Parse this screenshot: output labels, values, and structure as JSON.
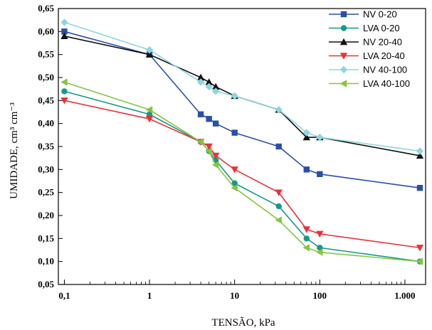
{
  "chart_data": {
    "type": "line",
    "xscale": "log",
    "xlim": [
      0.085,
      1750
    ],
    "ylim": [
      0.05,
      0.65
    ],
    "xticks": [
      {
        "value": 0.1,
        "label": "0,1"
      },
      {
        "value": 1,
        "label": "1"
      },
      {
        "value": 10,
        "label": "10"
      },
      {
        "value": 100,
        "label": "100"
      },
      {
        "value": 1000,
        "label": "1.000"
      }
    ],
    "yticks": [
      {
        "value": 0.05,
        "label": "0,05"
      },
      {
        "value": 0.1,
        "label": "0,10"
      },
      {
        "value": 0.15,
        "label": "0,15"
      },
      {
        "value": 0.2,
        "label": "0,20"
      },
      {
        "value": 0.25,
        "label": "0,25"
      },
      {
        "value": 0.3,
        "label": "0,30"
      },
      {
        "value": 0.35,
        "label": "0,35"
      },
      {
        "value": 0.4,
        "label": "0,40"
      },
      {
        "value": 0.45,
        "label": "0,45"
      },
      {
        "value": 0.5,
        "label": "0,50"
      },
      {
        "value": 0.55,
        "label": "0,55"
      },
      {
        "value": 0.6,
        "label": "0,60"
      },
      {
        "value": 0.65,
        "label": "0,65"
      }
    ],
    "xlabel": "TENSÃO, kPa",
    "ylabel": "UMIDADE, cm³ cm⁻³",
    "grid": false,
    "legend": "top-right",
    "series": [
      {
        "name": "NV 0-20",
        "color": "#2b4fa8",
        "marker": "square",
        "x": [
          0.1,
          1,
          4,
          5,
          6,
          10,
          33,
          70,
          100,
          1500
        ],
        "y": [
          0.6,
          0.55,
          0.42,
          0.41,
          0.4,
          0.38,
          0.35,
          0.3,
          0.29,
          0.26
        ]
      },
      {
        "name": "LVA 0-20",
        "color": "#159a88",
        "marker": "circle",
        "x": [
          0.1,
          1,
          4,
          5,
          6,
          10,
          33,
          70,
          100,
          1500
        ],
        "y": [
          0.47,
          0.42,
          0.36,
          0.34,
          0.32,
          0.27,
          0.22,
          0.15,
          0.13,
          0.1
        ]
      },
      {
        "name": "NV 20-40",
        "color": "#111111",
        "marker": "triangle-up",
        "x": [
          0.1,
          1,
          4,
          5,
          6,
          10,
          33,
          70,
          100,
          1500
        ],
        "y": [
          0.59,
          0.55,
          0.5,
          0.49,
          0.48,
          0.46,
          0.43,
          0.37,
          0.37,
          0.33
        ]
      },
      {
        "name": "LVA 20-40",
        "color": "#e8323a",
        "marker": "triangle-down",
        "x": [
          0.1,
          1,
          4,
          5,
          6,
          10,
          33,
          70,
          100,
          1500
        ],
        "y": [
          0.45,
          0.41,
          0.36,
          0.35,
          0.33,
          0.3,
          0.25,
          0.17,
          0.16,
          0.13
        ]
      },
      {
        "name": "NV 40-100",
        "color": "#8fd6df",
        "marker": "diamond",
        "x": [
          0.1,
          1,
          4,
          5,
          6,
          10,
          33,
          70,
          100,
          1500
        ],
        "y": [
          0.62,
          0.56,
          0.49,
          0.48,
          0.47,
          0.46,
          0.43,
          0.38,
          0.37,
          0.34
        ]
      },
      {
        "name": "LVA 40-100",
        "color": "#86c540",
        "marker": "triangle-left",
        "x": [
          0.1,
          1,
          4,
          5,
          6,
          10,
          33,
          70,
          100,
          1500
        ],
        "y": [
          0.49,
          0.43,
          0.36,
          0.34,
          0.31,
          0.26,
          0.19,
          0.13,
          0.12,
          0.1
        ]
      }
    ]
  }
}
